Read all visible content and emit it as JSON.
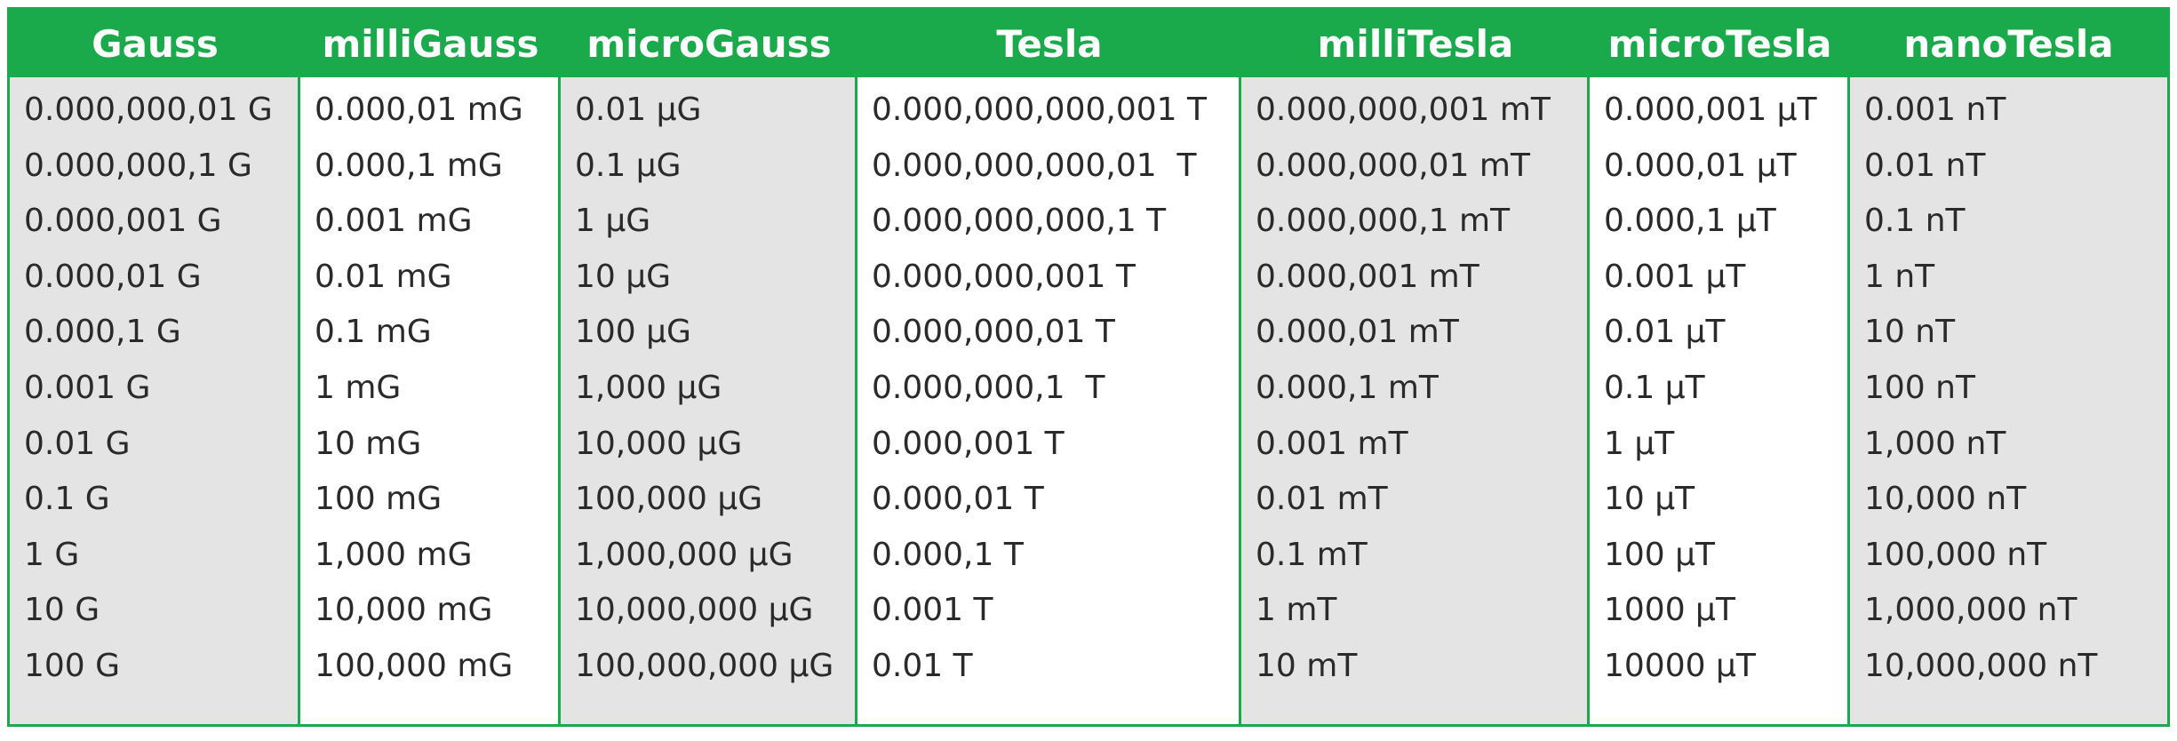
{
  "table": {
    "header": [
      "Gauss",
      "milliGauss",
      "microGauss",
      "Tesla",
      "milliTesla",
      "microTesla",
      "nanoTesla"
    ],
    "rows": [
      [
        "0.000,000,01 G",
        "0.000,01 mG",
        "0.01 µG",
        "0.000,000,000,001 T",
        "0.000,000,001 mT",
        "0.000,001 µT",
        "0.001 nT"
      ],
      [
        "0.000,000,1 G",
        "0.000,1 mG",
        "0.1 µG",
        "0.000,000,000,01  T",
        "0.000,000,01 mT",
        "0.000,01 µT",
        "0.01 nT"
      ],
      [
        "0.000,001 G",
        "0.001 mG",
        "1 µG",
        "0.000,000,000,1 T",
        "0.000,000,1 mT",
        "0.000,1 µT",
        "0.1 nT"
      ],
      [
        "0.000,01 G",
        "0.01 mG",
        "10 µG",
        "0.000,000,001 T",
        "0.000,001 mT",
        "0.001 µT",
        "1 nT"
      ],
      [
        "0.000,1 G",
        "0.1 mG",
        "100 µG",
        "0.000,000,01 T",
        "0.000,01 mT",
        "0.01 µT",
        "10 nT"
      ],
      [
        "0.001 G",
        "1 mG",
        "1,000 µG",
        "0.000,000,1  T",
        "0.000,1 mT",
        "0.1 µT",
        "100 nT"
      ],
      [
        "0.01 G",
        "10 mG",
        "10,000 µG",
        "0.000,001 T",
        "0.001 mT",
        "1 µT",
        "1,000 nT"
      ],
      [
        "0.1 G",
        "100 mG",
        "100,000 µG",
        "0.000,01 T",
        "0.01 mT",
        "10 µT",
        "10,000 nT"
      ],
      [
        "1 G",
        "1,000 mG",
        "1,000,000 µG",
        "0.000,1 T",
        "0.1 mT",
        "100 µT",
        "100,000 nT"
      ],
      [
        "10 G",
        "10,000 mG",
        "10,000,000 µG",
        "0.001 T",
        "1 mT",
        "1000 µT",
        "1,000,000 nT"
      ],
      [
        "100 G",
        "100,000 mG",
        "100,000,000 µG",
        "0.01 T",
        "10 mT",
        "10000 µT",
        "10,000,000 nT"
      ]
    ]
  }
}
